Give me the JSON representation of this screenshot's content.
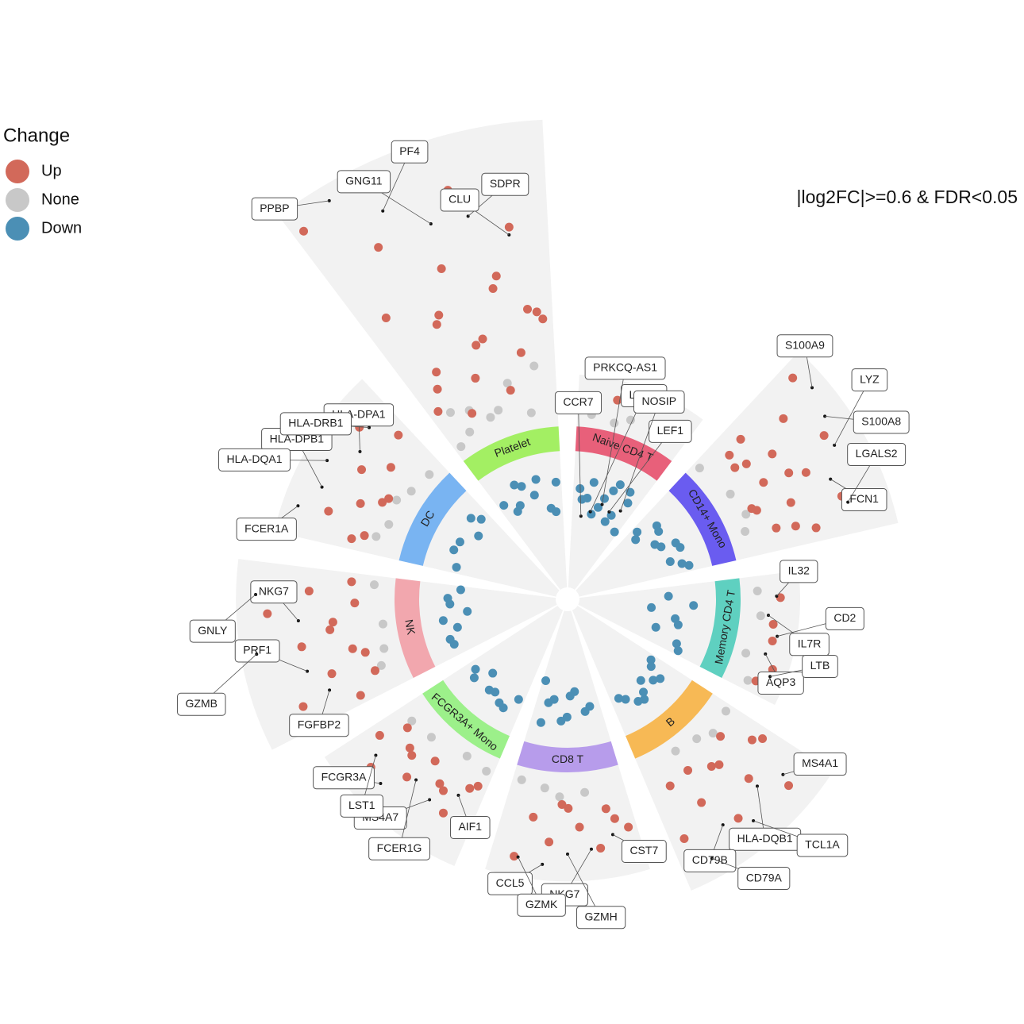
{
  "chart_data": {
    "type": "radial-scatter",
    "subtitle": "|log2FC|>=0.6 & FDR<0.05",
    "legend": {
      "title": "Change",
      "corner": "top-left"
    },
    "series": [
      {
        "name": "Up",
        "color": "#d2695a"
      },
      {
        "name": "None",
        "color": "#c8c8c8"
      },
      {
        "name": "Down",
        "color": "#4b8fb5"
      }
    ],
    "clusters": [
      {
        "name": "Platelet",
        "color": "#a3ef63",
        "up": [
          7.2,
          6.5,
          5.8,
          5.2,
          4.6,
          4.1,
          3.7,
          3.3,
          2.9,
          2.5,
          2.2,
          1.9,
          1.6,
          1.3,
          1.0,
          0.8,
          3.0,
          2.4,
          1.8,
          4.0,
          3.5,
          2.7
        ],
        "none": [
          0.4,
          0.3,
          0.5,
          0.2,
          1.2,
          0.9,
          1.5,
          0.6,
          1.1
        ],
        "down": [
          -0.8,
          -1.2,
          -1.6,
          -2.0,
          -2.4,
          -1.0,
          -1.4,
          -0.9,
          -1.8,
          -2.6
        ],
        "labels": [
          {
            "gene": "PPBP",
            "value": 7.5
          },
          {
            "gene": "PF4",
            "value": 6.6
          },
          {
            "gene": "GNG11",
            "value": 5.8
          },
          {
            "gene": "SDPR",
            "value": 5.7
          },
          {
            "gene": "CLU",
            "value": 5.0
          }
        ]
      },
      {
        "name": "Naive CD4 T",
        "color": "#e8607a",
        "up": [
          0.7,
          0.8
        ],
        "none": [
          0.3,
          0.2,
          0.4,
          0.1
        ],
        "down": [
          -0.8,
          -1.1,
          -1.4,
          -1.7,
          -2.0,
          -2.3,
          -2.6,
          -2.9,
          -1.2,
          -1.9,
          -0.9,
          -2.2,
          -1.5,
          -2.7
        ],
        "labels": [
          {
            "gene": "CCR7",
            "value": -2.8
          },
          {
            "gene": "LDHB",
            "value": -2.5
          },
          {
            "gene": "PRKCQ-AS1",
            "value": -2.0
          },
          {
            "gene": "LEF1",
            "value": -2.2
          },
          {
            "gene": "NOSIP",
            "value": -1.9
          }
        ]
      },
      {
        "name": "CD14+ Mono",
        "color": "#6a5cf0",
        "up": [
          0.7,
          0.9,
          1.1,
          1.3,
          1.5,
          1.7,
          1.9,
          2.1,
          2.4,
          2.7,
          3.0,
          3.3,
          3.6,
          0.8,
          1.2,
          1.6,
          2.0,
          1.0
        ],
        "none": [
          0.3,
          0.4,
          0.2,
          0.5
        ],
        "down": [
          -0.8,
          -1.0,
          -1.3,
          -1.6,
          -1.9,
          -2.2,
          -0.9,
          -1.4,
          -1.1,
          -1.7,
          -2.5
        ],
        "labels": [
          {
            "gene": "S100A9",
            "value": 3.8
          },
          {
            "gene": "S100A8",
            "value": 3.6
          },
          {
            "gene": "LYZ",
            "value": 3.4
          },
          {
            "gene": "FCN1",
            "value": 2.9
          },
          {
            "gene": "LGALS2",
            "value": 3.1
          }
        ]
      },
      {
        "name": "Memory CD4 T",
        "color": "#5fd0c0",
        "up": [
          0.7,
          0.8,
          0.9,
          1.0,
          0.75
        ],
        "none": [
          0.3,
          0.2,
          0.4,
          0.5
        ],
        "down": [
          -0.8,
          -1.2,
          -1.6,
          -2.0,
          -2.4,
          -2.8,
          -1.0,
          -1.4
        ],
        "labels": [
          {
            "gene": "IL32",
            "value": 0.8
          },
          {
            "gene": "IL7R",
            "value": 0.6
          },
          {
            "gene": "CD2",
            "value": 0.9
          },
          {
            "gene": "AQP3",
            "value": 0.7
          },
          {
            "gene": "LTB",
            "value": 1.0
          }
        ]
      },
      {
        "name": "B",
        "color": "#f7b955",
        "up": [
          0.7,
          0.9,
          1.1,
          1.4,
          1.7,
          2.0,
          2.3,
          2.6,
          2.9,
          3.2,
          1.2,
          1.6,
          0.8
        ],
        "none": [
          0.3,
          0.4,
          0.2,
          0.5
        ],
        "down": [
          -0.8,
          -1.0,
          -1.3,
          -1.6,
          -1.9,
          -0.9,
          -1.2,
          -1.5,
          -1.1,
          -1.7
        ],
        "labels": [
          {
            "gene": "MS4A1",
            "value": 2.6
          },
          {
            "gene": "HLA-DQB1",
            "value": 2.3
          },
          {
            "gene": "TCL1A",
            "value": 2.9
          },
          {
            "gene": "CD79B",
            "value": 2.5
          },
          {
            "gene": "CD79A",
            "value": 3.1
          }
        ]
      },
      {
        "name": "CD8 T",
        "color": "#b79ceb",
        "up": [
          0.7,
          0.9,
          1.1,
          1.3,
          1.5,
          1.7,
          1.9,
          2.2,
          0.8,
          1.2
        ],
        "none": [
          0.3,
          0.4,
          0.2,
          0.5
        ],
        "down": [
          -0.8,
          -1.2,
          -1.6,
          -2.0,
          -2.4,
          -2.8,
          -1.0,
          -1.4,
          -1.8,
          -2.2
        ],
        "labels": [
          {
            "gene": "CST7",
            "value": 1.6
          },
          {
            "gene": "NKG7",
            "value": 1.9
          },
          {
            "gene": "GZMH",
            "value": 2.0
          },
          {
            "gene": "CCL5",
            "value": 2.3
          },
          {
            "gene": "GZMK",
            "value": 2.2
          }
        ]
      },
      {
        "name": "FCGR3A+ Mono",
        "color": "#9cf08a",
        "up": [
          0.7,
          0.8,
          0.9,
          1.0,
          1.2,
          1.4,
          1.6,
          1.8,
          2.1,
          2.5,
          0.75,
          1.1,
          1.3
        ],
        "none": [
          0.3,
          0.4,
          0.2,
          0.5
        ],
        "down": [
          -0.8,
          -1.0,
          -1.2,
          -1.5,
          -1.8,
          -0.9,
          -1.3,
          -1.1
        ],
        "labels": [
          {
            "gene": "AIF1",
            "value": 1.2
          },
          {
            "gene": "MS4A7",
            "value": 1.7
          },
          {
            "gene": "FCER1G",
            "value": 1.5
          },
          {
            "gene": "FCGR3A",
            "value": 2.2
          },
          {
            "gene": "LST1",
            "value": 1.8
          }
        ]
      },
      {
        "name": "NK",
        "color": "#f2a7ae",
        "up": [
          0.7,
          0.9,
          1.1,
          1.3,
          1.5,
          1.8,
          2.1,
          2.4,
          2.8,
          3.2,
          0.8,
          1.0,
          1.6
        ],
        "none": [
          0.3,
          0.4,
          0.2,
          0.5
        ],
        "down": [
          -0.8,
          -1.0,
          -1.2,
          -1.4,
          -1.7,
          -2.0,
          -0.9,
          -1.1
        ],
        "labels": [
          {
            "gene": "FGFBP2",
            "value": 2.0
          },
          {
            "gene": "PRF1",
            "value": 2.4
          },
          {
            "gene": "GZMB",
            "value": 3.6
          },
          {
            "gene": "NKG7",
            "value": 2.4
          },
          {
            "gene": "GNLY",
            "value": 3.5
          }
        ]
      },
      {
        "name": "DC",
        "color": "#79b4f2",
        "up": [
          0.7,
          0.9,
          1.1,
          1.3,
          1.5,
          1.7,
          2.0,
          2.4,
          0.8,
          1.2
        ],
        "none": [
          0.3,
          0.4,
          0.2,
          0.5,
          0.6
        ],
        "down": [
          -0.8,
          -1.0,
          -1.3,
          -1.6,
          -0.9,
          -1.2
        ],
        "labels": [
          {
            "gene": "FCER1A",
            "value": 2.8
          },
          {
            "gene": "HLA-DPB1",
            "value": 2.4
          },
          {
            "gene": "HLA-DQA1",
            "value": 2.6
          },
          {
            "gene": "HLA-DPA1",
            "value": 2.0
          },
          {
            "gene": "HLA-DRB1",
            "value": 2.2
          }
        ]
      }
    ]
  }
}
